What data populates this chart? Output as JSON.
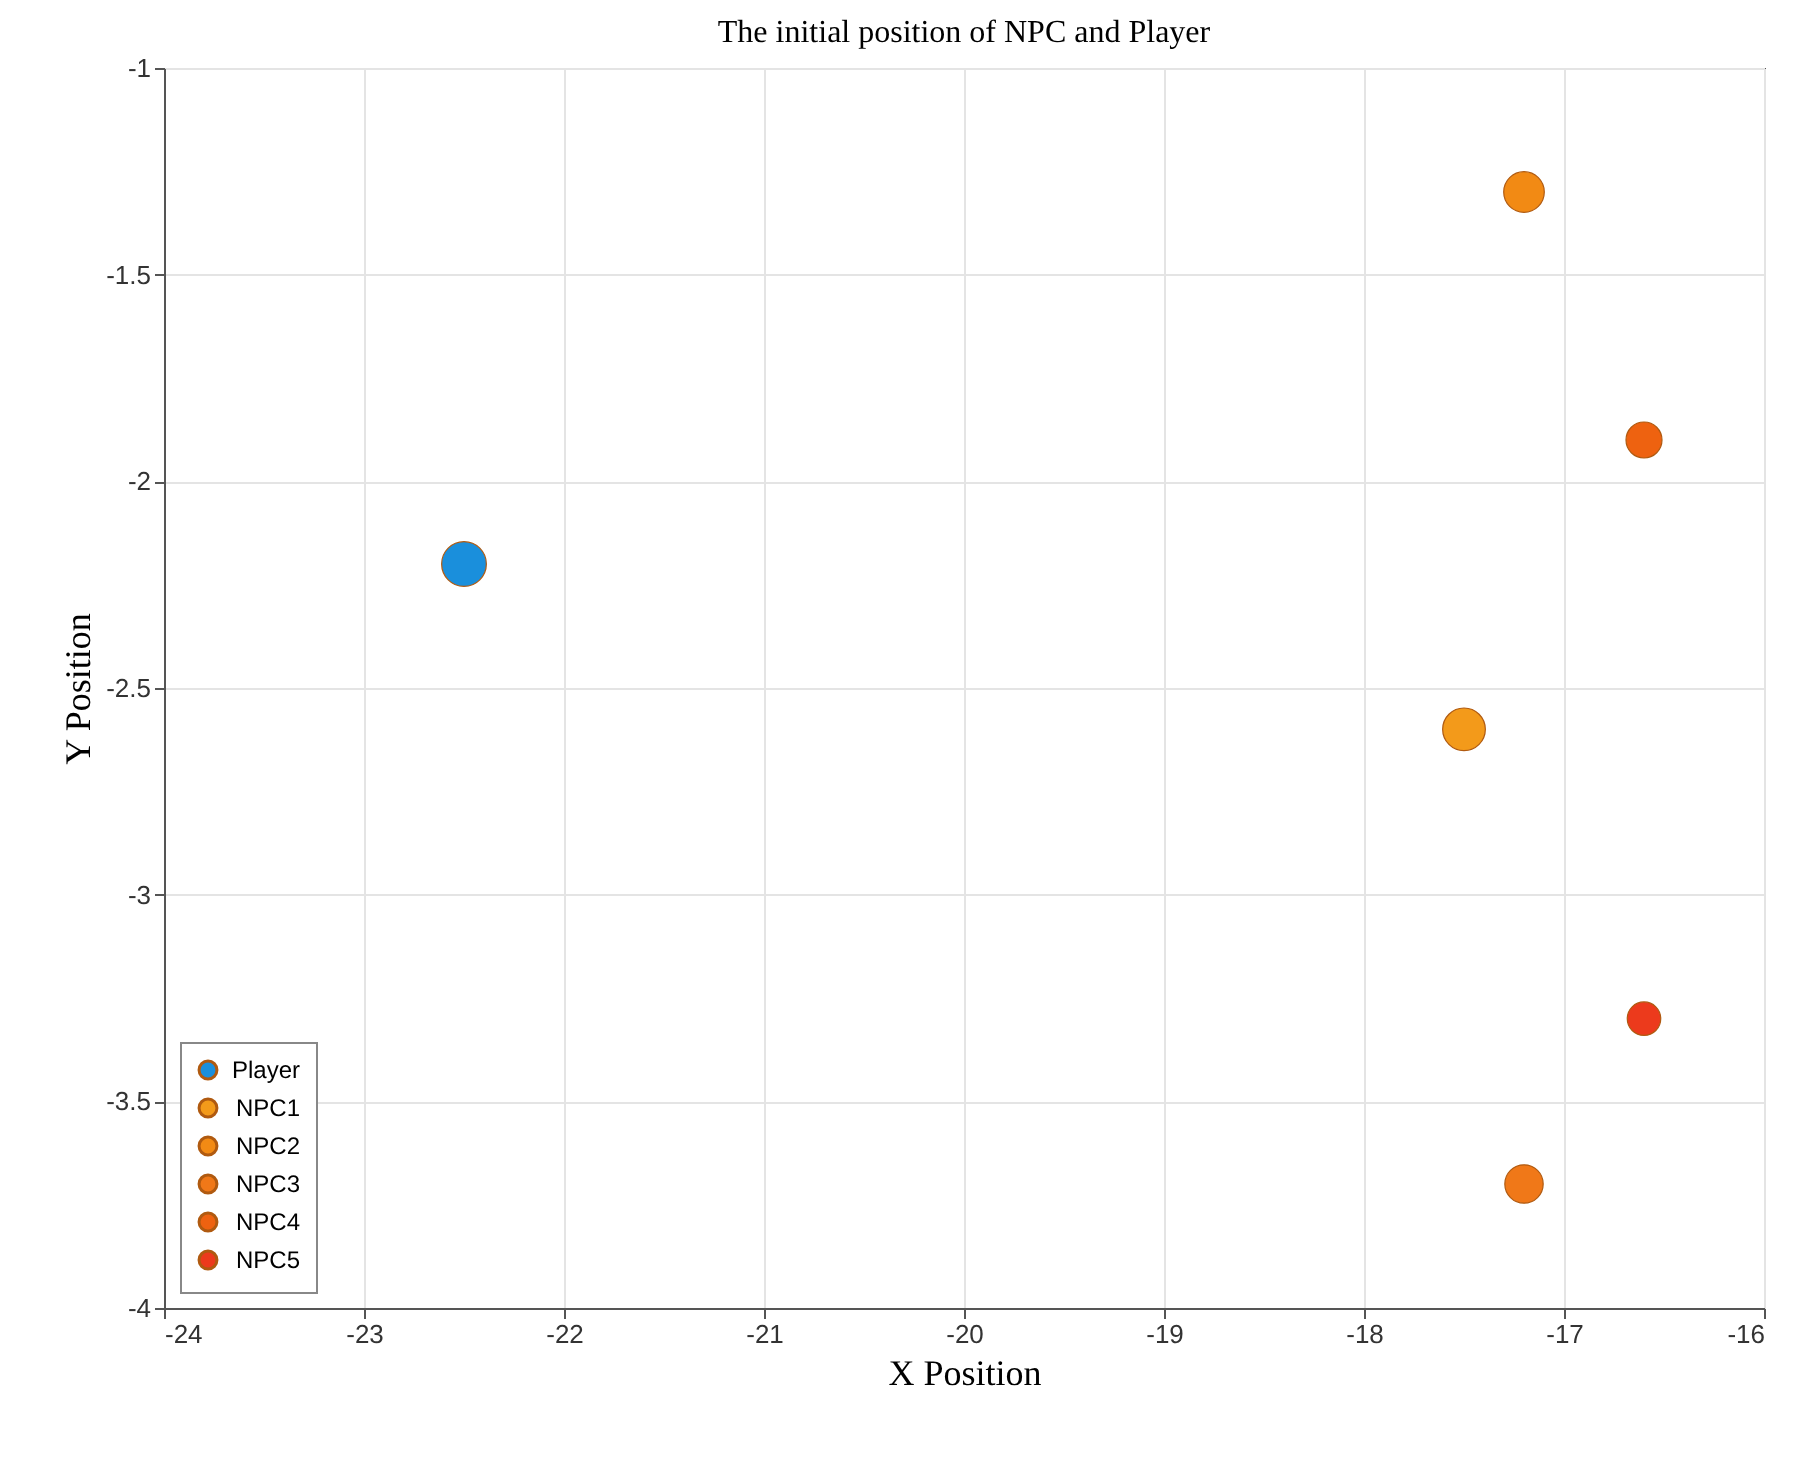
{
  "chart_data": {
    "type": "scatter",
    "title": "The initial position of NPC and Player",
    "xlabel": "X Position",
    "ylabel": "Y Position",
    "xlim": [
      -24,
      -16
    ],
    "xticks": [
      -24,
      -23,
      -22,
      -21,
      -20,
      -19,
      -18,
      -17,
      -16
    ],
    "ylim": [
      -4,
      -1
    ],
    "yticks": [
      -4,
      -3.5,
      -3,
      -2.5,
      -2,
      -1.5,
      -1
    ],
    "grid": true,
    "legend": "bottom left",
    "marker": "circle",
    "series": [
      {
        "name": "Player",
        "color": "#1a8fdc",
        "x": [
          -22.5
        ],
        "values": [
          -2.2
        ]
      },
      {
        "name": "NPC1",
        "color": "#f39a1a",
        "x": [
          -17.5
        ],
        "values": [
          -2.6
        ]
      },
      {
        "name": "NPC2",
        "color": "#f28a14",
        "x": [
          -17.2
        ],
        "values": [
          -1.3
        ]
      },
      {
        "name": "NPC3",
        "color": "#f07818",
        "x": [
          -17.2
        ],
        "values": [
          -3.7
        ]
      },
      {
        "name": "NPC4",
        "color": "#ee6210",
        "x": [
          -16.6
        ],
        "values": [
          -1.9
        ]
      },
      {
        "name": "NPC5",
        "color": "#ec3a1c",
        "x": [
          -16.6
        ],
        "values": [
          -3.3
        ]
      }
    ]
  }
}
